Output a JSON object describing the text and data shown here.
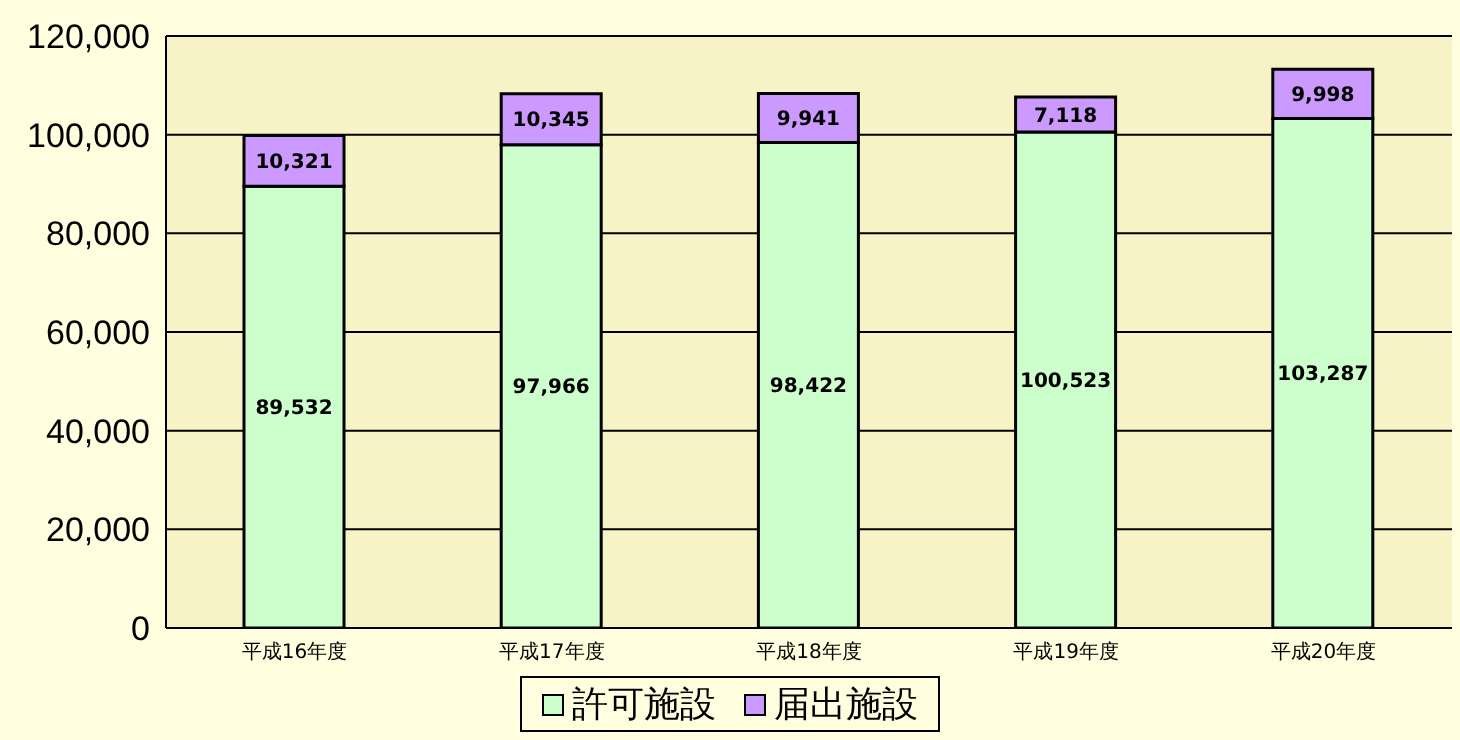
{
  "chart_data": {
    "type": "bar",
    "stacked": true,
    "categories": [
      "平成16年度",
      "平成17年度",
      "平成18年度",
      "平成19年度",
      "平成20年度"
    ],
    "series": [
      {
        "name": "許可施設",
        "color": "#ccffcc",
        "values": [
          89532,
          97966,
          98422,
          100523,
          103287
        ],
        "value_labels": [
          "89,532",
          "97,966",
          "98,422",
          "100,523",
          "103,287"
        ]
      },
      {
        "name": "届出施設",
        "color": "#cc99ff",
        "values": [
          10321,
          10345,
          9941,
          7118,
          9998
        ],
        "value_labels": [
          "10,321",
          "10,345",
          "9,941",
          "7,118",
          "9,998"
        ]
      }
    ],
    "ylim": [
      0,
      120000
    ],
    "yticks": [
      {
        "value": 0,
        "label": "0"
      },
      {
        "value": 20000,
        "label": "20,000"
      },
      {
        "value": 40000,
        "label": "40,000"
      },
      {
        "value": 60000,
        "label": "60,000"
      },
      {
        "value": 80000,
        "label": "80,000"
      },
      {
        "value": 100000,
        "label": "100,000"
      },
      {
        "value": 120000,
        "label": "120,000"
      }
    ],
    "grid": "y",
    "legend": "bottom"
  }
}
